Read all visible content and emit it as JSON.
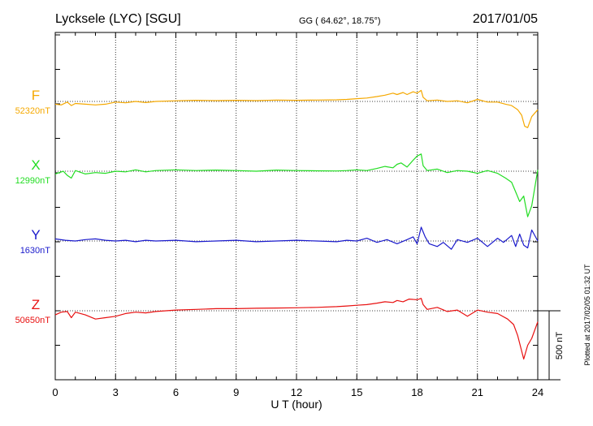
{
  "header": {
    "station": "Lycksele (LYC)  [SGU]",
    "coords": "GG ( 64.62°,  18.75°)",
    "date": "2017/01/05"
  },
  "footer": {
    "plotted": "Plotted at 2017/02/05 01:32 UT",
    "scale_label": "500 nT"
  },
  "chart_data": {
    "type": "line",
    "xlabel": "U T (hour)",
    "x_ticks": [
      0,
      3,
      6,
      9,
      12,
      15,
      18,
      21,
      24
    ],
    "xlim": [
      0,
      24
    ],
    "scale_bar_nT": 500,
    "grid": true,
    "series": [
      {
        "name": "F",
        "baseline_label": "52320nT",
        "baseline_nT": 52320,
        "color": "#f5a800",
        "points": [
          [
            0,
            -20
          ],
          [
            0.3,
            -25
          ],
          [
            0.6,
            -5
          ],
          [
            0.8,
            -30
          ],
          [
            1,
            -15
          ],
          [
            1.5,
            -20
          ],
          [
            2,
            -25
          ],
          [
            2.5,
            -20
          ],
          [
            3,
            -5
          ],
          [
            3.5,
            -10
          ],
          [
            4,
            0
          ],
          [
            4.5,
            -8
          ],
          [
            5,
            0
          ],
          [
            6,
            5
          ],
          [
            7,
            8
          ],
          [
            8,
            6
          ],
          [
            9,
            8
          ],
          [
            10,
            6
          ],
          [
            11,
            10
          ],
          [
            12,
            8
          ],
          [
            13,
            10
          ],
          [
            14,
            12
          ],
          [
            14.5,
            15
          ],
          [
            15,
            20
          ],
          [
            15.5,
            25
          ],
          [
            16,
            35
          ],
          [
            16.4,
            45
          ],
          [
            16.8,
            60
          ],
          [
            17,
            50
          ],
          [
            17.3,
            65
          ],
          [
            17.5,
            50
          ],
          [
            17.8,
            70
          ],
          [
            18,
            60
          ],
          [
            18.2,
            80
          ],
          [
            18.3,
            30
          ],
          [
            18.5,
            5
          ],
          [
            19,
            10
          ],
          [
            19.5,
            0
          ],
          [
            20,
            5
          ],
          [
            20.5,
            -10
          ],
          [
            21,
            15
          ],
          [
            21.5,
            -5
          ],
          [
            22,
            -5
          ],
          [
            22.4,
            -20
          ],
          [
            22.7,
            -30
          ],
          [
            23,
            -60
          ],
          [
            23.2,
            -100
          ],
          [
            23.35,
            -180
          ],
          [
            23.5,
            -190
          ],
          [
            23.7,
            -110
          ],
          [
            24,
            -60
          ]
        ]
      },
      {
        "name": "X",
        "baseline_label": "12990nT",
        "baseline_nT": 12990,
        "color": "#22dd22",
        "points": [
          [
            0,
            -20
          ],
          [
            0.4,
            0
          ],
          [
            0.6,
            -30
          ],
          [
            0.8,
            -50
          ],
          [
            1,
            5
          ],
          [
            1.5,
            -20
          ],
          [
            2,
            -10
          ],
          [
            2.5,
            -15
          ],
          [
            3,
            0
          ],
          [
            3.5,
            -5
          ],
          [
            4,
            10
          ],
          [
            4.5,
            -5
          ],
          [
            5,
            5
          ],
          [
            6,
            10
          ],
          [
            7,
            5
          ],
          [
            8,
            8
          ],
          [
            9,
            5
          ],
          [
            10,
            0
          ],
          [
            11,
            8
          ],
          [
            12,
            5
          ],
          [
            13,
            3
          ],
          [
            14,
            2
          ],
          [
            14.5,
            5
          ],
          [
            15,
            10
          ],
          [
            15.5,
            5
          ],
          [
            16,
            20
          ],
          [
            16.4,
            35
          ],
          [
            16.8,
            25
          ],
          [
            17,
            50
          ],
          [
            17.2,
            60
          ],
          [
            17.5,
            30
          ],
          [
            17.8,
            80
          ],
          [
            18,
            110
          ],
          [
            18.2,
            125
          ],
          [
            18.3,
            40
          ],
          [
            18.5,
            5
          ],
          [
            19,
            15
          ],
          [
            19.5,
            -10
          ],
          [
            20,
            5
          ],
          [
            20.5,
            0
          ],
          [
            21,
            -15
          ],
          [
            21.5,
            5
          ],
          [
            22,
            -15
          ],
          [
            22.4,
            -50
          ],
          [
            22.7,
            -80
          ],
          [
            22.9,
            -150
          ],
          [
            23.1,
            -220
          ],
          [
            23.3,
            -180
          ],
          [
            23.5,
            -330
          ],
          [
            23.7,
            -250
          ],
          [
            24,
            10
          ]
        ]
      },
      {
        "name": "Y",
        "baseline_label": "1630nT",
        "baseline_nT": 1630,
        "color": "#1a1acc",
        "points": [
          [
            0,
            15
          ],
          [
            0.5,
            5
          ],
          [
            1,
            0
          ],
          [
            1.5,
            10
          ],
          [
            2,
            15
          ],
          [
            2.5,
            5
          ],
          [
            3,
            0
          ],
          [
            3.5,
            5
          ],
          [
            4,
            -5
          ],
          [
            4.5,
            5
          ],
          [
            5,
            0
          ],
          [
            6,
            5
          ],
          [
            7,
            -5
          ],
          [
            8,
            0
          ],
          [
            9,
            5
          ],
          [
            10,
            -5
          ],
          [
            11,
            0
          ],
          [
            12,
            5
          ],
          [
            13,
            0
          ],
          [
            14,
            -5
          ],
          [
            14.5,
            5
          ],
          [
            15,
            0
          ],
          [
            15.5,
            20
          ],
          [
            16,
            -10
          ],
          [
            16.5,
            10
          ],
          [
            17,
            -20
          ],
          [
            17.5,
            10
          ],
          [
            17.8,
            30
          ],
          [
            18,
            -20
          ],
          [
            18.2,
            100
          ],
          [
            18.4,
            30
          ],
          [
            18.6,
            -20
          ],
          [
            19,
            -40
          ],
          [
            19.3,
            -10
          ],
          [
            19.7,
            -60
          ],
          [
            20,
            10
          ],
          [
            20.5,
            -10
          ],
          [
            21,
            20
          ],
          [
            21.5,
            -40
          ],
          [
            22,
            20
          ],
          [
            22.3,
            -10
          ],
          [
            22.7,
            40
          ],
          [
            22.9,
            -40
          ],
          [
            23.1,
            50
          ],
          [
            23.3,
            -30
          ],
          [
            23.5,
            -50
          ],
          [
            23.7,
            80
          ],
          [
            24,
            0
          ]
        ]
      },
      {
        "name": "Z",
        "baseline_label": "50650nT",
        "baseline_nT": 50650,
        "color": "#e81010",
        "points": [
          [
            0,
            -30
          ],
          [
            0.3,
            -10
          ],
          [
            0.6,
            -5
          ],
          [
            0.8,
            -50
          ],
          [
            1,
            -10
          ],
          [
            1.5,
            -30
          ],
          [
            2,
            -60
          ],
          [
            2.5,
            -50
          ],
          [
            3,
            -40
          ],
          [
            3.5,
            -20
          ],
          [
            4,
            -10
          ],
          [
            4.5,
            -15
          ],
          [
            5,
            -5
          ],
          [
            6,
            5
          ],
          [
            7,
            10
          ],
          [
            8,
            15
          ],
          [
            9,
            15
          ],
          [
            10,
            18
          ],
          [
            11,
            20
          ],
          [
            12,
            22
          ],
          [
            13,
            25
          ],
          [
            14,
            30
          ],
          [
            14.5,
            35
          ],
          [
            15,
            40
          ],
          [
            15.5,
            45
          ],
          [
            16,
            55
          ],
          [
            16.4,
            65
          ],
          [
            16.8,
            60
          ],
          [
            17,
            75
          ],
          [
            17.3,
            65
          ],
          [
            17.6,
            85
          ],
          [
            18,
            80
          ],
          [
            18.2,
            90
          ],
          [
            18.3,
            45
          ],
          [
            18.5,
            10
          ],
          [
            19,
            25
          ],
          [
            19.5,
            -5
          ],
          [
            20,
            5
          ],
          [
            20.5,
            -40
          ],
          [
            21,
            5
          ],
          [
            21.5,
            -10
          ],
          [
            22,
            -20
          ],
          [
            22.5,
            -60
          ],
          [
            22.8,
            -100
          ],
          [
            23,
            -180
          ],
          [
            23.3,
            -350
          ],
          [
            23.5,
            -250
          ],
          [
            23.7,
            -200
          ],
          [
            24,
            -80
          ]
        ]
      }
    ]
  }
}
